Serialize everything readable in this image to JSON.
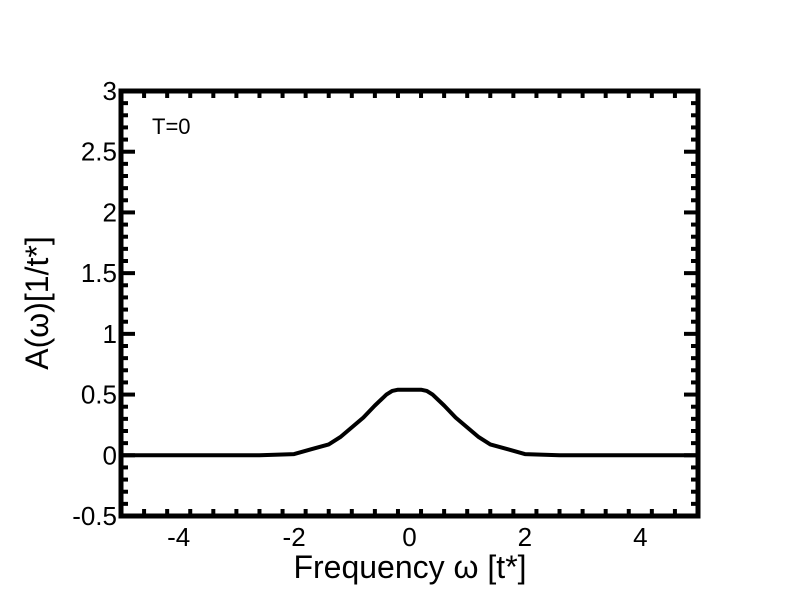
{
  "chart_data": {
    "type": "line",
    "title": "",
    "xlabel": "Frequency ω [t*]",
    "ylabel": "A(ω)[1/t*]",
    "xlim": [
      -5,
      5
    ],
    "ylim": [
      -0.5,
      3
    ],
    "x_ticks": [
      -4,
      -2,
      0,
      2,
      4
    ],
    "y_ticks": [
      -0.5,
      0,
      0.5,
      1,
      1.5,
      2,
      2.5,
      3
    ],
    "x_tick_labels": [
      "-4",
      "-2",
      "0",
      "2",
      "4"
    ],
    "y_tick_labels": [
      "-0.5",
      "0",
      "0.5",
      "1",
      "1.5",
      "2",
      "2.5",
      "3"
    ],
    "annotation": "T=0",
    "grid": false,
    "series": [
      {
        "color": "#000000",
        "x": [
          -5,
          -3,
          -2.6,
          -2.0,
          -1.7,
          -1.4,
          -1.2,
          -1.0,
          -0.8,
          -0.6,
          -0.4,
          -0.3,
          -0.2,
          0,
          0.2,
          0.3,
          0.4,
          0.6,
          0.8,
          1.0,
          1.2,
          1.4,
          1.7,
          2.0,
          2.6,
          3,
          5
        ],
        "y": [
          0,
          0,
          0,
          0.01,
          0.05,
          0.09,
          0.15,
          0.23,
          0.31,
          0.41,
          0.5,
          0.53,
          0.54,
          0.54,
          0.54,
          0.53,
          0.5,
          0.41,
          0.31,
          0.23,
          0.15,
          0.09,
          0.05,
          0.01,
          0,
          0,
          0
        ]
      }
    ]
  }
}
